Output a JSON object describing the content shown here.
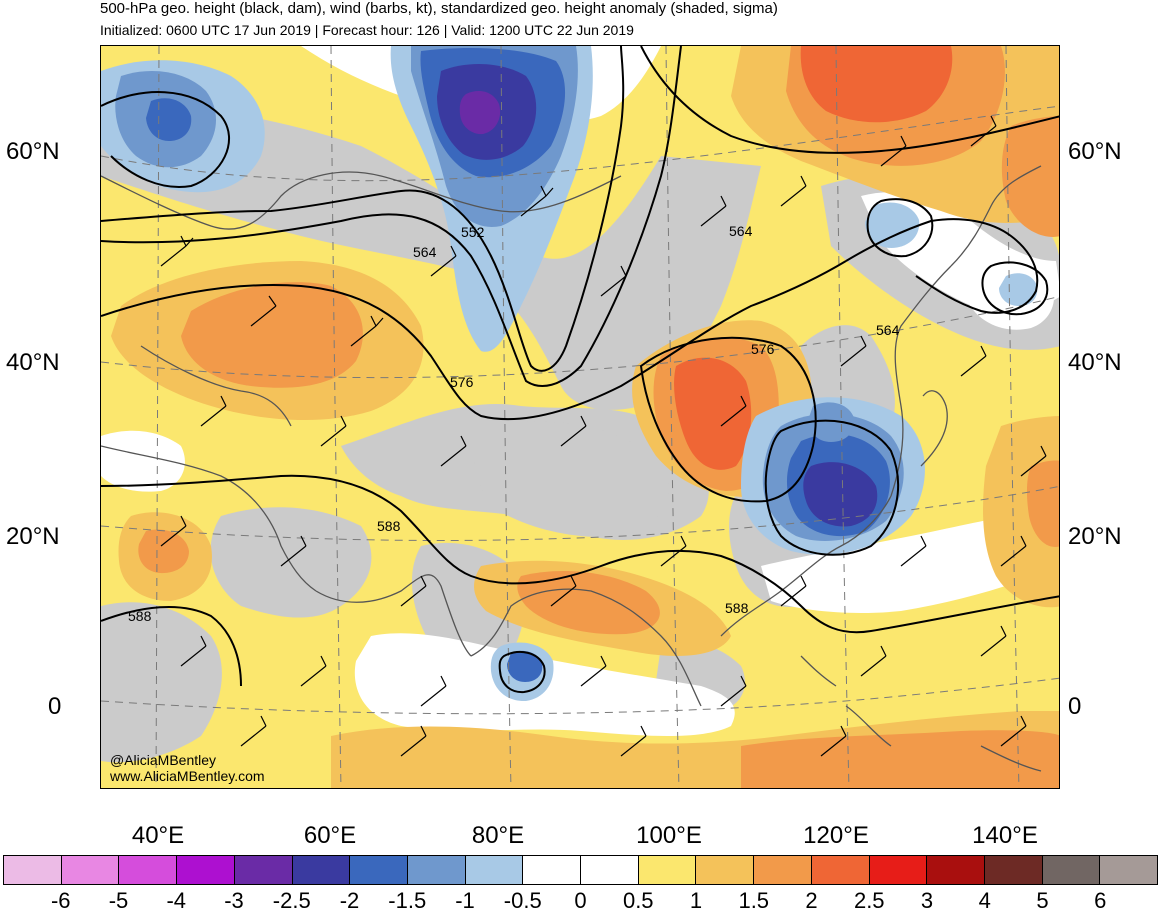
{
  "title": "500-hPa geo. height (black, dam), wind (barbs, kt), standardized geo. height anomaly (shaded, sigma)",
  "subtitle": "Initialized: 0600 UTC 17 Jun 2019 | Forecast hour: 126 | Valid: 1200 UTC 22 Jun 2019",
  "lat_labels": {
    "n60": "60°N",
    "n40": "40°N",
    "n20": "20°N",
    "eq": "0"
  },
  "lon_labels": {
    "e40": "40°E",
    "e60": "60°E",
    "e80": "80°E",
    "e100": "100°E",
    "e120": "120°E",
    "e140": "140°E"
  },
  "contour_labels": [
    "552",
    "564",
    "576",
    "588",
    "564",
    "576",
    "564",
    "588",
    "588"
  ],
  "credit": {
    "handle": "@AliciaMBentley",
    "site": "www.AliciaMBentley.com"
  },
  "colorbar": {
    "ticks": [
      "-6",
      "-5",
      "-4",
      "-3",
      "-2.5",
      "-2",
      "-1.5",
      "-1",
      "-0.5",
      "0",
      "0.5",
      "1",
      "1.5",
      "2",
      "2.5",
      "3",
      "4",
      "5",
      "6"
    ],
    "colors": [
      "#ecbbe6",
      "#e887e3",
      "#d54ddc",
      "#ad10d0",
      "#6a2ba6",
      "#3a3aa0",
      "#3a68bd",
      "#6f98cd",
      "#a8c9e6",
      "#ffffff",
      "#ffffff",
      "#fbe76e",
      "#f4c25a",
      "#f29a4a",
      "#ef6635",
      "#e71d18",
      "#a90f0e",
      "#6d2a25",
      "#716663",
      "#a59a97"
    ]
  },
  "colors": {
    "gray": "#cbcbcb",
    "yellow": "#fbe76e",
    "light_orange": "#f4c25a",
    "orange": "#f29a4a",
    "red_orange": "#ef6635",
    "light_blue": "#a8c9e6",
    "mid_blue": "#6f98cd",
    "blue": "#3a68bd",
    "dark_blue": "#3a3aa0",
    "purple": "#6a2ba6"
  }
}
